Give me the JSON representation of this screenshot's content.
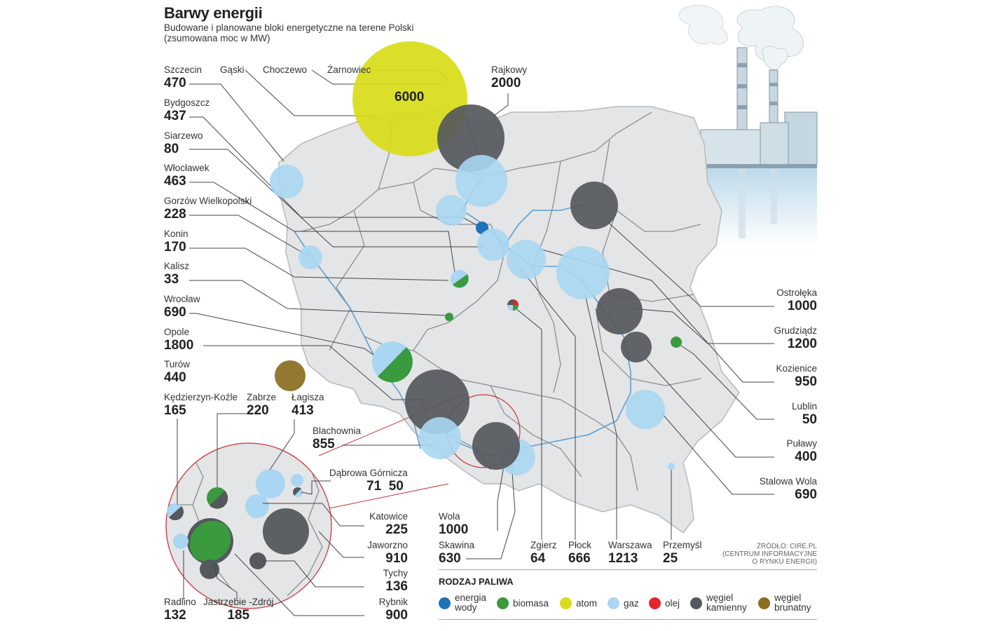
{
  "header": {
    "title": "Barwy energii",
    "subtitle_line1": "Budowane i planowane bloki energetyczne na terene Polski",
    "subtitle_line2": "(zsumowana moc w MW)"
  },
  "plants_left": [
    {
      "name": "Szczecin",
      "mw": "470"
    },
    {
      "name": "Bydgoszcz",
      "mw": "437"
    },
    {
      "name": "Siarzewo",
      "mw": "80"
    },
    {
      "name": "Włocławek",
      "mw": "463"
    },
    {
      "name": "Gorzów Wielkopolski",
      "mw": "228"
    },
    {
      "name": "Konin",
      "mw": "170"
    },
    {
      "name": "Kalisz",
      "mw": "33"
    },
    {
      "name": "Wrocław",
      "mw": "690"
    },
    {
      "name": "Opole",
      "mw": "1800"
    },
    {
      "name": "Turów",
      "mw": "440"
    }
  ],
  "plants_top": {
    "gaski": "Gąski",
    "choczewo": "Choczewo",
    "zarnowiec": "Żarnowiec",
    "zarnowiec_mw": "6000",
    "rajkowy": "Rajkowy",
    "rajkowy_mw": "2000"
  },
  "plants_right": [
    {
      "name": "Ostrołęka",
      "mw": "1000"
    },
    {
      "name": "Grudziądz",
      "mw": "1200"
    },
    {
      "name": "Kozienice",
      "mw": "950"
    },
    {
      "name": "Lublin",
      "mw": "50"
    },
    {
      "name": "Puławy",
      "mw": "400"
    },
    {
      "name": "Stalowa Wola",
      "mw": "690"
    }
  ],
  "plants_bottom": [
    {
      "name": "Zgierz",
      "mw": "64"
    },
    {
      "name": "Płock",
      "mw": "666"
    },
    {
      "name": "Warszawa",
      "mw": "1213"
    },
    {
      "name": "Przemyśl",
      "mw": "25"
    }
  ],
  "plants_south": {
    "wola": "Wola",
    "wola_mw": "1000",
    "skawina": "Skawina",
    "skawina_mw": "630",
    "blachownia": "Blachownia",
    "blachownia_mw": "855"
  },
  "silesia": {
    "kedzierzyn": "Kędzierzyn-Koźle",
    "kedzierzyn_mw": "165",
    "zabrze": "Zabrze",
    "zabrze_mw": "220",
    "lagisza": "Łagisza",
    "lagisza_mw": "413",
    "dabrowa": "Dąbrowa Górnicza",
    "dabrowa_mw1": "71",
    "dabrowa_mw2": "50",
    "katowice": "Katowice",
    "katowice_mw": "225",
    "jaworzno": "Jaworzno",
    "jaworzno_mw": "910",
    "tychy": "Tychy",
    "tychy_mw": "136",
    "rybnik": "Rybnik",
    "rybnik_mw": "900",
    "radlino": "Radlino",
    "radlino_mw": "132",
    "jastrzebie": "Jastrzębie -Zdrój",
    "jastrzebie_mw": "185"
  },
  "source": {
    "line1": "ŹRÓDŁO: CIRE.PL",
    "line2": "(CENTRUM INFORMACYJNE",
    "line3": "O RYNKU ENERGII)"
  },
  "legend": {
    "title": "RODZAJ PALIWA",
    "items": [
      {
        "label1": "energia",
        "label2": "wody",
        "color": "#1f73b7"
      },
      {
        "label1": "biomasa",
        "label2": "",
        "color": "#3a9a3e"
      },
      {
        "label1": "atom",
        "label2": "",
        "color": "#d8dc18"
      },
      {
        "label1": "gaz",
        "label2": "",
        "color": "#a9d6f2"
      },
      {
        "label1": "olej",
        "label2": "",
        "color": "#e2262c"
      },
      {
        "label1": "węgiel",
        "label2": "kamienny",
        "color": "#55585c"
      },
      {
        "label1": "węgiel",
        "label2": "brunatny",
        "color": "#8a6d1f"
      }
    ]
  },
  "colors": {
    "map_fill": "#e4e5e6",
    "border": "#888a8c",
    "river": "#5b9ed6",
    "inset_ring": "#c8353a"
  }
}
